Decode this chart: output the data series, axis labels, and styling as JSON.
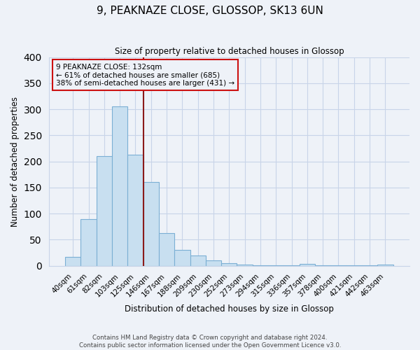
{
  "title": "9, PEAKNAZE CLOSE, GLOSSOP, SK13 6UN",
  "subtitle": "Size of property relative to detached houses in Glossop",
  "xlabel": "Distribution of detached houses by size in Glossop",
  "ylabel": "Number of detached properties",
  "categories": [
    "40sqm",
    "61sqm",
    "82sqm",
    "103sqm",
    "125sqm",
    "146sqm",
    "167sqm",
    "188sqm",
    "209sqm",
    "230sqm",
    "252sqm",
    "273sqm",
    "294sqm",
    "315sqm",
    "336sqm",
    "357sqm",
    "378sqm",
    "400sqm",
    "421sqm",
    "442sqm",
    "463sqm"
  ],
  "values": [
    17,
    90,
    210,
    305,
    213,
    160,
    63,
    30,
    20,
    10,
    5,
    2,
    1,
    1,
    1,
    3,
    1,
    1,
    1,
    1,
    2
  ],
  "bar_color": "#c8dff0",
  "bar_edge_color": "#7bafd4",
  "vline_index": 4,
  "vline_color": "#8b1a1a",
  "annotation_line1": "9 PEAKNAZE CLOSE: 132sqm",
  "annotation_line2": "← 61% of detached houses are smaller (685)",
  "annotation_line3": "38% of semi-detached houses are larger (431) →",
  "ylim": [
    0,
    400
  ],
  "yticks": [
    0,
    50,
    100,
    150,
    200,
    250,
    300,
    350,
    400
  ],
  "footer_line1": "Contains HM Land Registry data © Crown copyright and database right 2024.",
  "footer_line2": "Contains public sector information licensed under the Open Government Licence v3.0.",
  "bg_color": "#eef2f8",
  "grid_color": "#c8d4e8"
}
